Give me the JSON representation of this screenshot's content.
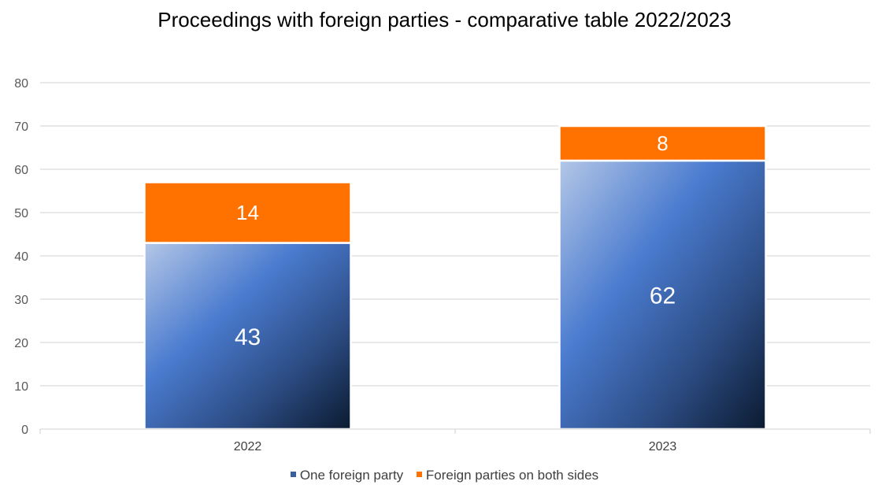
{
  "chart_data": {
    "type": "bar",
    "stacked": true,
    "title": "Proceedings with foreign parties - comparative table 2022/2023",
    "categories": [
      "2022",
      "2023"
    ],
    "series": [
      {
        "name": "One foreign party",
        "values": [
          43,
          62
        ],
        "color": "#4472C4"
      },
      {
        "name": "Foreign parties on both sides",
        "values": [
          14,
          8
        ],
        "color": "#FF7200"
      }
    ],
    "yticks": [
      "0",
      "10",
      "20",
      "30",
      "40",
      "50",
      "60",
      "70",
      "80"
    ],
    "ylim": [
      0,
      80
    ],
    "grid": true,
    "legend_position": "bottom"
  }
}
